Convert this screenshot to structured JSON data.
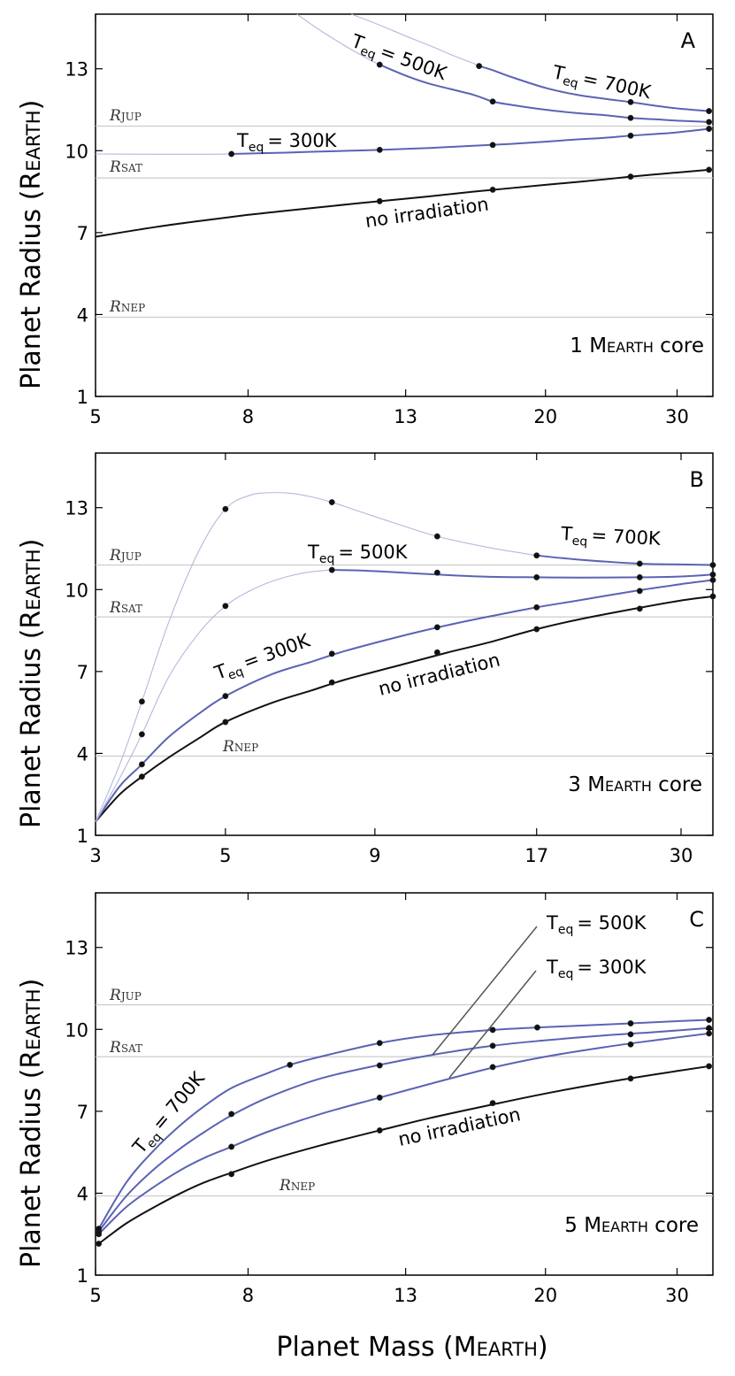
{
  "figure": {
    "ylabel": "Planet Radius (REARTH)",
    "xlabel": "Planet Mass (MEARTH)"
  },
  "chart_data": [
    {
      "type": "line",
      "panel": "A",
      "core_label": "1 MEARTH core",
      "x_scale": "log",
      "xlim": [
        5,
        33.5
      ],
      "ylim": [
        1,
        15
      ],
      "xticks": [
        5,
        8,
        13,
        20,
        30
      ],
      "yticks": [
        1,
        4,
        7,
        10,
        13
      ],
      "reference_lines": [
        {
          "name": "R_JUP",
          "label": "RJUP",
          "y": 10.9
        },
        {
          "name": "R_SAT",
          "label": "RSAT",
          "y": 9.0
        },
        {
          "name": "R_NEP",
          "label": "RNEP",
          "y": 3.9
        }
      ],
      "series": [
        {
          "name": "no irradiation",
          "label": "no irradiation",
          "color": "#111111",
          "x": [
            5,
            6,
            7,
            8,
            9,
            10,
            11,
            12,
            14,
            16,
            18,
            20,
            22,
            24,
            26,
            28,
            30,
            33.1
          ],
          "y": [
            6.85,
            7.2,
            7.45,
            7.65,
            7.8,
            7.93,
            8.05,
            8.15,
            8.33,
            8.5,
            8.63,
            8.75,
            8.85,
            8.95,
            9.05,
            9.13,
            9.2,
            9.3
          ],
          "markers_x": [
            12,
            17,
            26,
            33.1
          ],
          "markers_y": [
            8.15,
            8.57,
            9.05,
            9.3
          ]
        },
        {
          "name": "Teq = 300K",
          "label": "Teq = 300K",
          "color": "#5b63b3",
          "x": [
            5,
            6,
            7,
            7.6,
            9,
            10,
            11,
            12,
            14,
            16,
            18,
            20,
            22,
            24,
            26,
            28,
            30,
            33.1
          ],
          "y": [
            9.88,
            9.87,
            9.87,
            9.88,
            9.93,
            9.97,
            10.0,
            10.03,
            10.1,
            10.18,
            10.25,
            10.33,
            10.41,
            10.47,
            10.55,
            10.61,
            10.67,
            10.8
          ],
          "thin_until_x": 7.6,
          "markers_x": [
            7.6,
            12,
            17,
            26,
            33.1
          ],
          "markers_y": [
            9.88,
            10.03,
            10.21,
            10.55,
            10.8
          ]
        },
        {
          "name": "Teq = 500K",
          "label": "Teq = 500K",
          "color": "#5b63b3",
          "x": [
            9.3,
            10,
            11,
            11.7,
            12,
            13,
            14,
            16,
            17,
            18,
            20,
            22,
            24,
            26,
            28,
            30,
            33.1
          ],
          "y": [
            15.0,
            14.4,
            13.7,
            13.3,
            13.15,
            12.75,
            12.45,
            12.05,
            11.8,
            11.68,
            11.5,
            11.38,
            11.3,
            11.2,
            11.15,
            11.1,
            11.05
          ],
          "thin_until_x": 12,
          "markers_x": [
            12,
            17,
            26,
            33.1
          ],
          "markers_y": [
            13.15,
            11.8,
            11.2,
            11.05
          ]
        },
        {
          "name": "Teq = 700K",
          "label": "Teq = 700K",
          "color": "#5b63b3",
          "x": [
            11,
            12,
            13,
            14,
            15,
            16,
            16.3,
            17,
            18,
            20,
            22,
            24,
            26,
            28,
            30,
            33.1
          ],
          "y": [
            15.0,
            14.6,
            14.2,
            13.85,
            13.5,
            13.2,
            13.1,
            12.95,
            12.7,
            12.3,
            12.05,
            11.9,
            11.78,
            11.65,
            11.55,
            11.45
          ],
          "thin_until_x": 16.3,
          "markers_x": [
            16.3,
            26,
            33.1
          ],
          "markers_y": [
            13.1,
            11.78,
            11.45
          ]
        }
      ]
    },
    {
      "type": "line",
      "panel": "B",
      "core_label": "3 MEARTH core",
      "x_scale": "log",
      "xlim": [
        3,
        34
      ],
      "ylim": [
        1,
        15
      ],
      "xticks": [
        3,
        5,
        9,
        17,
        30
      ],
      "yticks": [
        1,
        4,
        7,
        10,
        13
      ],
      "reference_lines": [
        {
          "name": "R_JUP",
          "label": "RJUP",
          "y": 10.9
        },
        {
          "name": "R_SAT",
          "label": "RSAT",
          "y": 9.0
        },
        {
          "name": "R_NEP",
          "label": "RNEP",
          "y": 3.9
        }
      ],
      "series": [
        {
          "name": "no irradiation",
          "label": "no irradiation",
          "color": "#111111",
          "x": [
            3,
            3.3,
            3.6,
            4,
            4.5,
            5,
            6,
            7,
            8,
            10,
            12,
            14,
            17,
            20,
            25,
            30,
            34
          ],
          "y": [
            1.5,
            2.5,
            3.15,
            3.85,
            4.55,
            5.15,
            5.85,
            6.3,
            6.7,
            7.25,
            7.7,
            8.05,
            8.55,
            8.9,
            9.3,
            9.6,
            9.75
          ],
          "markers_x": [
            3.6,
            5,
            7.6,
            11.5,
            17,
            25.5,
            34
          ],
          "markers_y": [
            3.15,
            5.15,
            6.6,
            7.7,
            8.55,
            9.3,
            9.75
          ]
        },
        {
          "name": "Teq = 300K",
          "label": "Teq = 300K",
          "color": "#5b63b3",
          "x": [
            3,
            3.3,
            3.6,
            4,
            4.5,
            5,
            6,
            7,
            8,
            10,
            12,
            14,
            17,
            20,
            25,
            30,
            34
          ],
          "y": [
            1.5,
            2.8,
            3.6,
            4.6,
            5.45,
            6.1,
            6.9,
            7.35,
            7.75,
            8.3,
            8.7,
            9.0,
            9.35,
            9.6,
            9.95,
            10.2,
            10.35
          ],
          "markers_x": [
            3.6,
            5,
            7.6,
            11.5,
            17,
            25.5,
            34
          ],
          "markers_y": [
            3.6,
            6.1,
            7.65,
            8.62,
            9.35,
            9.95,
            10.35
          ]
        },
        {
          "name": "Teq = 500K",
          "label": "Teq = 500K",
          "color": "#5b63b3",
          "x": [
            3,
            3.3,
            3.6,
            4,
            4.5,
            5,
            5.5,
            6,
            6.5,
            7,
            7.6,
            8.5,
            9.5,
            11.5,
            14,
            17,
            20,
            25.5,
            30,
            34
          ],
          "y": [
            1.5,
            3.1,
            4.7,
            6.8,
            8.4,
            9.4,
            9.95,
            10.3,
            10.52,
            10.65,
            10.72,
            10.7,
            10.65,
            10.55,
            10.47,
            10.45,
            10.44,
            10.45,
            10.48,
            10.55
          ],
          "thin_until_x": 7.6,
          "markers_x": [
            3.6,
            5,
            7.6,
            11.5,
            17,
            25.5,
            34
          ],
          "markers_y": [
            4.7,
            9.4,
            10.72,
            10.62,
            10.45,
            10.45,
            10.55
          ]
        },
        {
          "name": "Teq = 700K",
          "label": "Teq = 700K",
          "color": "#5b63b3",
          "x": [
            3,
            3.3,
            3.6,
            4,
            4.5,
            5,
            5.5,
            6,
            6.5,
            7,
            7.6,
            8.5,
            10,
            11.5,
            14,
            17,
            20,
            25.5,
            30,
            34
          ],
          "y": [
            1.5,
            3.6,
            5.9,
            8.8,
            11.4,
            12.95,
            13.45,
            13.55,
            13.52,
            13.4,
            13.2,
            12.85,
            12.35,
            11.95,
            11.55,
            11.25,
            11.1,
            10.95,
            10.92,
            10.9
          ],
          "thin_until_x": 17,
          "markers_x": [
            3.6,
            5,
            7.6,
            11.5,
            17,
            25.5,
            34
          ],
          "markers_y": [
            5.9,
            12.95,
            13.2,
            11.95,
            11.25,
            10.95,
            10.9
          ]
        }
      ]
    },
    {
      "type": "line",
      "panel": "C",
      "core_label": "5 MEARTH core",
      "x_scale": "log",
      "xlim": [
        5,
        33.5
      ],
      "ylim": [
        1,
        15
      ],
      "xticks": [
        5,
        8,
        13,
        20,
        30
      ],
      "yticks": [
        1,
        4,
        7,
        10,
        13
      ],
      "reference_lines": [
        {
          "name": "R_JUP",
          "label": "RJUP",
          "y": 10.9
        },
        {
          "name": "R_SAT",
          "label": "RSAT",
          "y": 9.0
        },
        {
          "name": "R_NEP",
          "label": "RNEP",
          "y": 3.9
        }
      ],
      "series": [
        {
          "name": "no irradiation",
          "label": "no irradiation",
          "color": "#111111",
          "x": [
            5.05,
            5.5,
            6,
            6.5,
            7,
            7.6,
            8.5,
            10,
            12,
            14,
            17,
            20,
            24,
            28,
            33.1
          ],
          "y": [
            2.15,
            2.9,
            3.5,
            4.0,
            4.4,
            4.75,
            5.2,
            5.75,
            6.3,
            6.75,
            7.25,
            7.65,
            8.05,
            8.35,
            8.65
          ],
          "markers_x": [
            5.05,
            7.6,
            12,
            17,
            26,
            33.1
          ],
          "markers_y": [
            2.15,
            4.7,
            6.3,
            7.3,
            8.2,
            8.65
          ]
        },
        {
          "name": "Teq = 300K",
          "label": "Teq = 300K",
          "color": "#5b63b3",
          "x": [
            5.05,
            5.5,
            6,
            6.5,
            7,
            7.6,
            8.5,
            10,
            12,
            14,
            17,
            20,
            24,
            28,
            33.1
          ],
          "y": [
            2.5,
            3.5,
            4.25,
            4.85,
            5.3,
            5.7,
            6.25,
            6.9,
            7.5,
            8.0,
            8.6,
            9.0,
            9.35,
            9.6,
            9.85
          ],
          "markers_x": [
            5.05,
            7.6,
            12,
            17,
            26,
            33.1
          ],
          "markers_y": [
            2.5,
            5.7,
            7.5,
            8.62,
            9.45,
            9.85
          ]
        },
        {
          "name": "Teq = 500K",
          "label": "Teq = 500K",
          "color": "#5b63b3",
          "x": [
            5.05,
            5.5,
            6,
            6.5,
            7,
            7.6,
            8.5,
            10,
            12,
            14,
            17,
            20,
            24,
            28,
            33.1
          ],
          "y": [
            2.6,
            3.9,
            4.9,
            5.65,
            6.25,
            6.85,
            7.5,
            8.2,
            8.7,
            9.05,
            9.4,
            9.6,
            9.78,
            9.9,
            10.05
          ],
          "markers_x": [
            5.05,
            7.6,
            12,
            17,
            26,
            33.1
          ],
          "markers_y": [
            2.6,
            6.9,
            8.68,
            9.4,
            9.82,
            10.05
          ]
        },
        {
          "name": "Teq = 700K",
          "label": "Teq = 700K",
          "color": "#5b63b3",
          "x": [
            5.05,
            5.5,
            6,
            6.5,
            7,
            7.6,
            8.5,
            9.1,
            10,
            12,
            14,
            17,
            19.5,
            22,
            26,
            30,
            33.1
          ],
          "y": [
            2.7,
            4.4,
            5.6,
            6.5,
            7.2,
            7.85,
            8.4,
            8.7,
            9.0,
            9.5,
            9.78,
            9.98,
            10.07,
            10.13,
            10.22,
            10.3,
            10.35
          ],
          "markers_x": [
            5.05,
            9.1,
            12,
            17,
            19.5,
            26,
            33.1
          ],
          "markers_y": [
            2.7,
            8.7,
            9.5,
            9.98,
            10.07,
            10.22,
            10.35
          ]
        }
      ]
    }
  ],
  "labels": {
    "A": {
      "panel": "A",
      "core_num": "1 M",
      "core_sub": "EARTH",
      "core_tail": " core",
      "teq700": "= 700K",
      "teq500": "= 500K",
      "teq300": "= 300K",
      "noirr": "no irradiation",
      "rjup": "R",
      "rjup_sub": "JUP",
      "rsat": "R",
      "rsat_sub": "SAT",
      "rnep": "R",
      "rnep_sub": "NEP"
    },
    "B": {
      "panel": "B",
      "core_num": "3 M",
      "core_sub": "EARTH",
      "core_tail": " core",
      "teq700": "= 700K",
      "teq500": "= 500K",
      "teq300": "= 300K",
      "noirr": "no irradiation",
      "rjup": "R",
      "rjup_sub": "JUP",
      "rsat": "R",
      "rsat_sub": "SAT",
      "rnep": "R",
      "rnep_sub": "NEP"
    },
    "C": {
      "panel": "C",
      "core_num": "5 M",
      "core_sub": "EARTH",
      "core_tail": " core",
      "teq700": "= 700K",
      "teq500": "= 500K",
      "teq300": "= 300K",
      "noirr": "no irradiation",
      "rjup": "R",
      "rjup_sub": "JUP",
      "rsat": "R",
      "rsat_sub": "SAT",
      "rnep": "R",
      "rnep_sub": "NEP"
    },
    "ylabel_main": "Planet Radius (R",
    "ylabel_sub": "EARTH",
    "ylabel_tail": ")",
    "xlabel_main": "Planet Mass (M",
    "xlabel_sub": "EARTH",
    "xlabel_tail": ")",
    "T": "T",
    "eq": "eq"
  },
  "colors": {
    "black_curve": "#111111",
    "blue_curve": "#5b63b3",
    "thin_curve": "#b4b8dd",
    "ref_line": "#cccccc"
  }
}
